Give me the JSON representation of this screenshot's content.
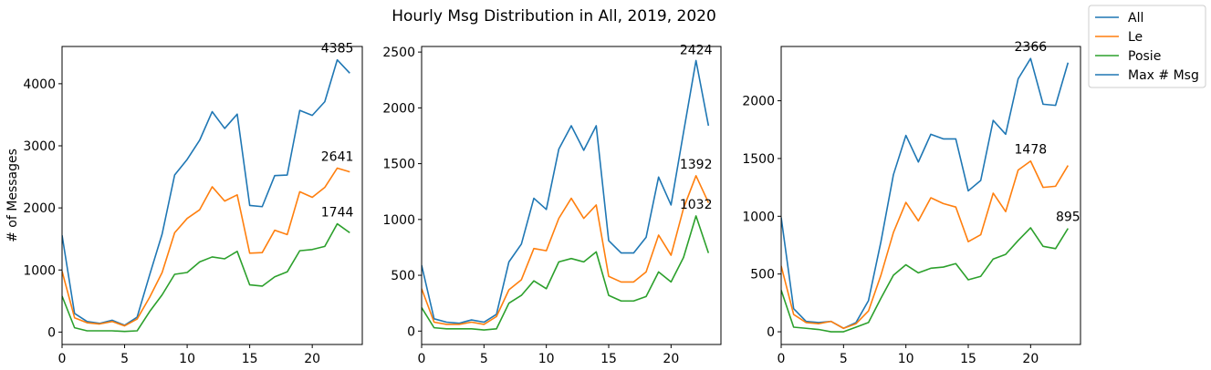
{
  "figure": {
    "title": "Hourly Msg Distribution in All, 2019, 2020"
  },
  "legend": {
    "placement": "top-right",
    "entries": [
      {
        "label": "All",
        "color": "#1f77b4"
      },
      {
        "label": "Le",
        "color": "#ff7f0e"
      },
      {
        "label": "Posie",
        "color": "#2ca02c"
      },
      {
        "label": "Max # Msg",
        "color": "#1f77b4"
      }
    ]
  },
  "chart_data": [
    {
      "type": "line",
      "ylabel": "# of Messages",
      "xlim": [
        0,
        24
      ],
      "ylim": [
        -200,
        4600
      ],
      "xticks": [
        0,
        5,
        10,
        15,
        20
      ],
      "yticks": [
        0,
        1000,
        2000,
        3000,
        4000
      ],
      "x": [
        0,
        1,
        2,
        3,
        4,
        5,
        6,
        7,
        8,
        9,
        10,
        11,
        12,
        13,
        14,
        15,
        16,
        17,
        18,
        19,
        20,
        21,
        22,
        23
      ],
      "series": [
        {
          "name": "All",
          "color": "#1f77b4",
          "values": [
            1560,
            300,
            170,
            140,
            190,
            110,
            240,
            920,
            1580,
            2530,
            2780,
            3090,
            3550,
            3280,
            3510,
            2040,
            2020,
            2520,
            2530,
            3570,
            3490,
            3710,
            4385,
            4170
          ]
        },
        {
          "name": "Le",
          "color": "#ff7f0e",
          "values": [
            980,
            230,
            150,
            130,
            170,
            100,
            210,
            560,
            960,
            1600,
            1830,
            1970,
            2340,
            2110,
            2210,
            1270,
            1280,
            1640,
            1570,
            2260,
            2170,
            2330,
            2641,
            2580
          ]
        },
        {
          "name": "Posie",
          "color": "#2ca02c",
          "values": [
            580,
            70,
            20,
            20,
            20,
            10,
            20,
            330,
            600,
            930,
            960,
            1130,
            1210,
            1180,
            1300,
            760,
            740,
            890,
            970,
            1310,
            1330,
            1380,
            1744,
            1600
          ]
        }
      ],
      "annotations": [
        {
          "text": "4385",
          "x": 22,
          "y": 4385
        },
        {
          "text": "2641",
          "x": 22,
          "y": 2641
        },
        {
          "text": "1744",
          "x": 22,
          "y": 1744
        }
      ]
    },
    {
      "type": "line",
      "xlim": [
        0,
        24
      ],
      "ylim": [
        -120,
        2550
      ],
      "xticks": [
        0,
        5,
        10,
        15,
        20
      ],
      "yticks": [
        0,
        500,
        1000,
        1500,
        2000,
        2500
      ],
      "x": [
        0,
        1,
        2,
        3,
        4,
        5,
        6,
        7,
        8,
        9,
        10,
        11,
        12,
        13,
        14,
        15,
        16,
        17,
        18,
        19,
        20,
        21,
        22,
        23
      ],
      "series": [
        {
          "name": "All",
          "color": "#1f77b4",
          "values": [
            590,
            110,
            80,
            70,
            100,
            80,
            150,
            620,
            780,
            1190,
            1090,
            1630,
            1840,
            1620,
            1840,
            810,
            700,
            700,
            840,
            1380,
            1130,
            1780,
            2424,
            1840
          ]
        },
        {
          "name": "Le",
          "color": "#ff7f0e",
          "values": [
            380,
            80,
            60,
            60,
            80,
            60,
            130,
            370,
            460,
            740,
            720,
            1010,
            1190,
            1010,
            1130,
            490,
            440,
            440,
            530,
            860,
            680,
            1100,
            1392,
            1150
          ]
        },
        {
          "name": "Posie",
          "color": "#2ca02c",
          "values": [
            210,
            30,
            20,
            20,
            20,
            10,
            20,
            250,
            320,
            450,
            380,
            620,
            650,
            620,
            710,
            320,
            270,
            270,
            310,
            530,
            440,
            660,
            1032,
            700
          ]
        }
      ],
      "annotations": [
        {
          "text": "2424",
          "x": 22,
          "y": 2424
        },
        {
          "text": "1392",
          "x": 22,
          "y": 1392
        },
        {
          "text": "1032",
          "x": 22,
          "y": 1032
        }
      ]
    },
    {
      "type": "line",
      "xlim": [
        0,
        24
      ],
      "ylim": [
        -110,
        2470
      ],
      "xticks": [
        0,
        5,
        10,
        15,
        20
      ],
      "yticks": [
        0,
        500,
        1000,
        1500,
        2000
      ],
      "x": [
        0,
        1,
        2,
        3,
        4,
        5,
        6,
        7,
        8,
        9,
        10,
        11,
        12,
        13,
        14,
        15,
        16,
        17,
        18,
        19,
        20,
        21,
        22,
        23
      ],
      "series": [
        {
          "name": "All",
          "color": "#1f77b4",
          "values": [
            990,
            200,
            90,
            80,
            90,
            30,
            80,
            270,
            780,
            1360,
            1700,
            1470,
            1710,
            1670,
            1670,
            1220,
            1310,
            1830,
            1710,
            2190,
            2366,
            1970,
            1960,
            2330
          ]
        },
        {
          "name": "Le",
          "color": "#ff7f0e",
          "values": [
            570,
            150,
            80,
            70,
            90,
            30,
            70,
            180,
            490,
            860,
            1120,
            960,
            1160,
            1110,
            1080,
            780,
            840,
            1200,
            1040,
            1400,
            1478,
            1250,
            1260,
            1440
          ]
        },
        {
          "name": "Posie",
          "color": "#2ca02c",
          "values": [
            360,
            40,
            30,
            20,
            0,
            0,
            40,
            80,
            290,
            490,
            580,
            510,
            550,
            560,
            590,
            450,
            480,
            630,
            670,
            790,
            900,
            740,
            720,
            895
          ]
        }
      ],
      "annotations": [
        {
          "text": "2366",
          "x": 20,
          "y": 2366
        },
        {
          "text": "1478",
          "x": 20,
          "y": 1478
        },
        {
          "text": "895",
          "x": 23,
          "y": 895
        }
      ]
    }
  ]
}
